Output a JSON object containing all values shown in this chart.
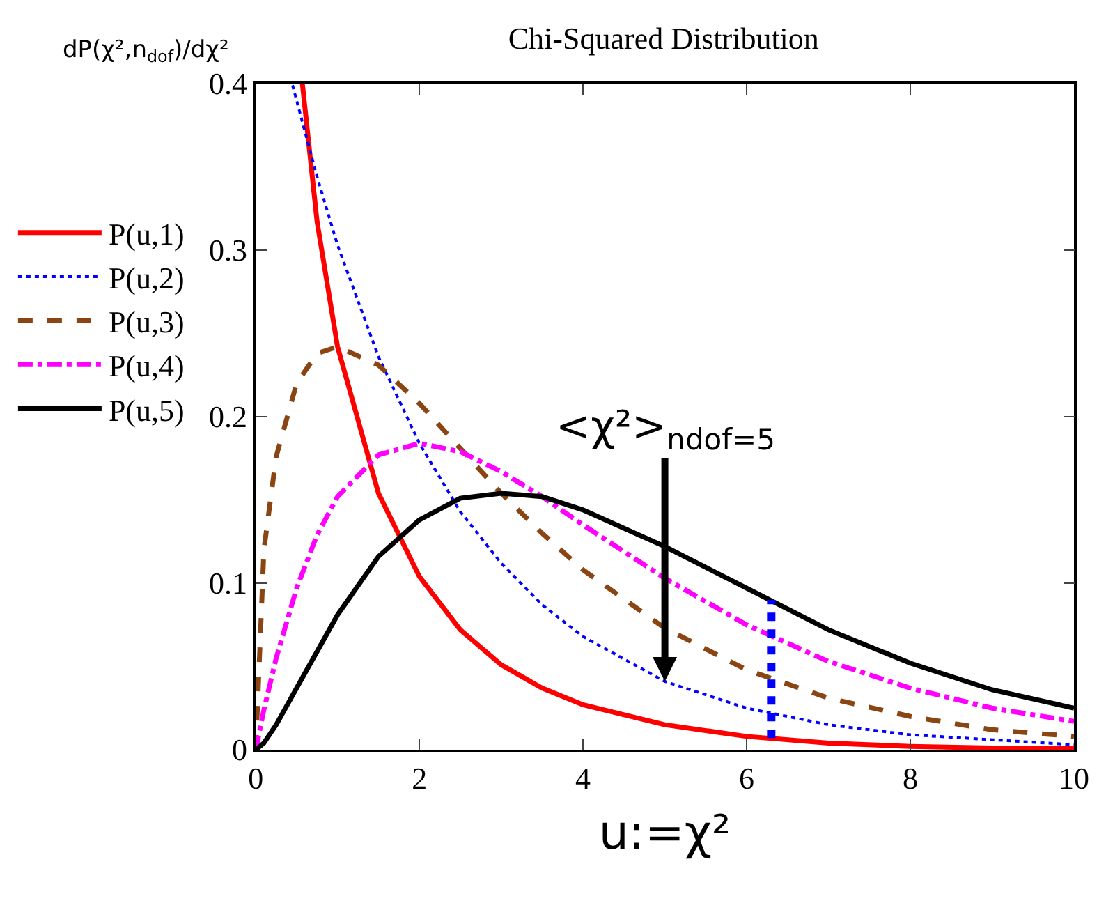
{
  "chart_data": {
    "type": "line",
    "title": "Chi-Squared Distribution",
    "xlabel": "u:=χ²",
    "ylabel": "dP(χ²,n$_{dof}$)/dχ²",
    "xlim": [
      0,
      10
    ],
    "xticks": [
      0,
      2,
      4,
      6,
      8,
      10
    ],
    "ylim": [
      0,
      0.4
    ],
    "yticks": [
      0,
      0.1,
      0.2,
      0.3,
      0.4
    ],
    "legend": "left",
    "marker": "none",
    "annotations": [
      {
        "text": "<χ²>$_{ndof=5}$",
        "x": 5,
        "y": 0.041
      }
    ],
    "series": [
      {
        "name": "P(u,1)",
        "color": "#ff0000",
        "line_style": "solid",
        "x": [
          0.57,
          0.75,
          1,
          1.5,
          2,
          2.5,
          3,
          3.5,
          4,
          5,
          6,
          7,
          8,
          9,
          10
        ],
        "values": [
          0.4,
          0.317,
          0.242,
          0.154,
          0.104,
          0.072,
          0.051,
          0.037,
          0.027,
          0.015,
          0.008,
          0.004,
          0.002,
          0.001,
          0.001
        ]
      },
      {
        "name": "P(u,2)",
        "color": "#0000ff",
        "line_style": "dotted",
        "x": [
          0.45,
          0.75,
          1,
          1.5,
          2,
          2.5,
          3,
          3.5,
          4,
          5,
          6,
          7,
          8,
          9,
          10
        ],
        "values": [
          0.399,
          0.344,
          0.303,
          0.236,
          0.184,
          0.143,
          0.112,
          0.087,
          0.068,
          0.041,
          0.025,
          0.015,
          0.009,
          0.006,
          0.003
        ]
      },
      {
        "name": "P(u,3)",
        "color": "#8b4513",
        "line_style": "dashed",
        "x": [
          0,
          0.1,
          0.25,
          0.5,
          0.75,
          1,
          1.5,
          2,
          2.5,
          3,
          3.5,
          4,
          5,
          6,
          7,
          8,
          9,
          10
        ],
        "values": [
          0,
          0.12,
          0.176,
          0.22,
          0.238,
          0.242,
          0.231,
          0.208,
          0.181,
          0.154,
          0.13,
          0.108,
          0.073,
          0.048,
          0.031,
          0.02,
          0.012,
          0.008
        ]
      },
      {
        "name": "P(u,4)",
        "color": "#ff00ff",
        "line_style": "dashdot",
        "x": [
          0,
          0.1,
          0.25,
          0.5,
          0.75,
          1,
          1.5,
          2,
          2.5,
          3,
          3.5,
          4,
          5,
          6,
          7,
          8,
          9,
          10
        ],
        "values": [
          0,
          0.024,
          0.055,
          0.097,
          0.129,
          0.152,
          0.177,
          0.184,
          0.179,
          0.167,
          0.152,
          0.135,
          0.103,
          0.075,
          0.053,
          0.037,
          0.025,
          0.017
        ]
      },
      {
        "name": "P(u,5)",
        "color": "#000000",
        "line_style": "solid",
        "x": [
          0,
          0.1,
          0.25,
          0.5,
          0.75,
          1,
          1.5,
          2,
          2.5,
          3,
          3.5,
          4,
          5,
          6,
          7,
          8,
          9,
          10
        ],
        "values": [
          0,
          0.004,
          0.015,
          0.037,
          0.059,
          0.081,
          0.116,
          0.138,
          0.151,
          0.154,
          0.152,
          0.144,
          0.122,
          0.097,
          0.072,
          0.052,
          0.036,
          0.025
        ]
      },
      {
        "color": "#0000ff",
        "line_style": "dotted",
        "x": [
          6.3,
          6.3
        ],
        "values": [
          0.007,
          0.09
        ]
      }
    ]
  }
}
